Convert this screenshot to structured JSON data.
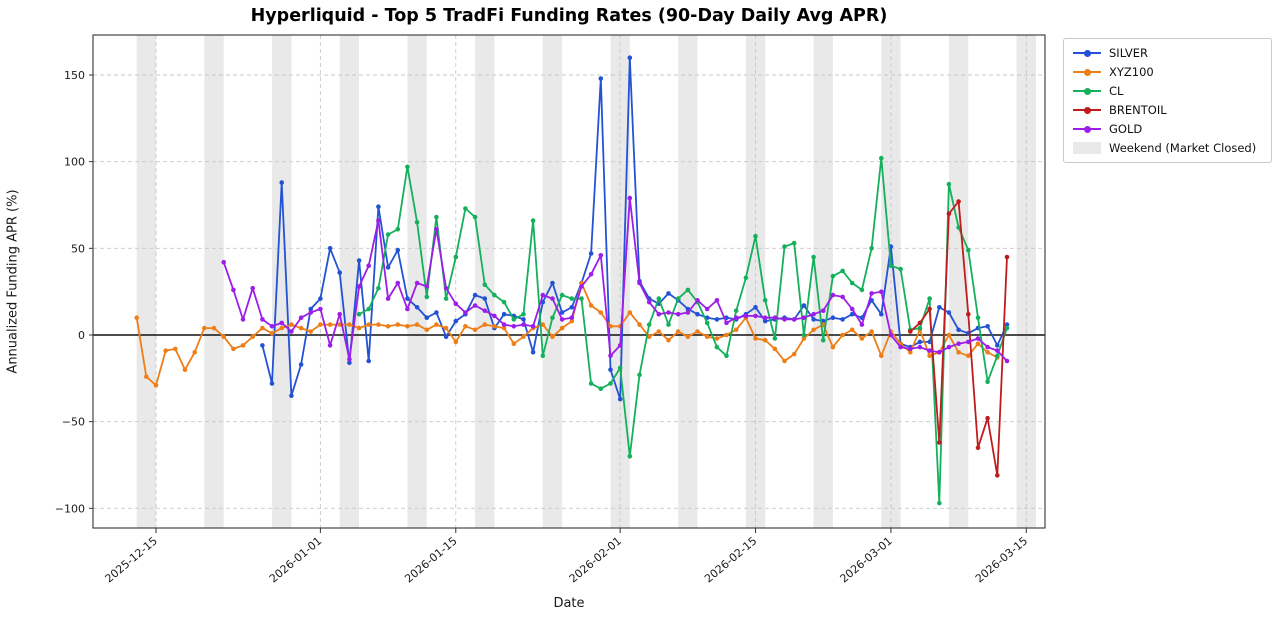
{
  "figure": {
    "title": "Hyperliquid - Top 5 TradFi Funding Rates (90-Day Daily Avg APR)",
    "xlabel": "Date",
    "ylabel": "Annualized Funding APR (%)"
  },
  "legend": {
    "weekend_label": "Weekend (Market Closed)"
  },
  "chart_data": {
    "type": "line",
    "title": "Hyperliquid - Top 5 TradFi Funding Rates (90-Day Daily Avg APR)",
    "xlabel": "Date",
    "ylabel": "Annualized Funding APR (%)",
    "grid": "dashed",
    "zero_line": true,
    "legend_position": "upper-right-outside",
    "ylim": [
      -111,
      173
    ],
    "yticks": [
      {
        "label": "−100",
        "value": -100
      },
      {
        "label": "−50",
        "value": -50
      },
      {
        "label": "0",
        "value": 0
      },
      {
        "label": "50",
        "value": 50
      },
      {
        "label": "100",
        "value": 100
      },
      {
        "label": "150",
        "value": 150
      }
    ],
    "xticks": [
      {
        "label": "2025-12-15",
        "index": 2
      },
      {
        "label": "2026-01-01",
        "index": 19
      },
      {
        "label": "2026-01-15",
        "index": 33
      },
      {
        "label": "2026-02-01",
        "index": 50
      },
      {
        "label": "2026-02-15",
        "index": 64
      },
      {
        "label": "2026-03-01",
        "index": 78
      },
      {
        "label": "2026-03-15",
        "index": 92
      }
    ],
    "weekend_shading": {
      "label": "Weekend (Market Closed)",
      "color": "#e9e9e9",
      "start_date": "2025-12-13",
      "days_drawn": 93
    },
    "x_dates": [
      "2025-12-13",
      "2025-12-14",
      "2025-12-15",
      "2025-12-16",
      "2025-12-17",
      "2025-12-18",
      "2025-12-19",
      "2025-12-20",
      "2025-12-21",
      "2025-12-22",
      "2025-12-23",
      "2025-12-24",
      "2025-12-25",
      "2025-12-26",
      "2025-12-27",
      "2025-12-28",
      "2025-12-29",
      "2025-12-30",
      "2025-12-31",
      "2026-01-01",
      "2026-01-02",
      "2026-01-03",
      "2026-01-04",
      "2026-01-05",
      "2026-01-06",
      "2026-01-07",
      "2026-01-08",
      "2026-01-09",
      "2026-01-10",
      "2026-01-11",
      "2026-01-12",
      "2026-01-13",
      "2026-01-14",
      "2026-01-15",
      "2026-01-16",
      "2026-01-17",
      "2026-01-18",
      "2026-01-19",
      "2026-01-20",
      "2026-01-21",
      "2026-01-22",
      "2026-01-23",
      "2026-01-24",
      "2026-01-25",
      "2026-01-26",
      "2026-01-27",
      "2026-01-28",
      "2026-01-29",
      "2026-01-30",
      "2026-01-31",
      "2026-02-01",
      "2026-02-02",
      "2026-02-03",
      "2026-02-04",
      "2026-02-05",
      "2026-02-06",
      "2026-02-07",
      "2026-02-08",
      "2026-02-09",
      "2026-02-10",
      "2026-02-11",
      "2026-02-12",
      "2026-02-13",
      "2026-02-14",
      "2026-02-15",
      "2026-02-16",
      "2026-02-17",
      "2026-02-18",
      "2026-02-19",
      "2026-02-20",
      "2026-02-21",
      "2026-02-22",
      "2026-02-23",
      "2026-02-24",
      "2026-02-25",
      "2026-02-26",
      "2026-02-27",
      "2026-02-28",
      "2026-03-01",
      "2026-03-02",
      "2026-03-03",
      "2026-03-04",
      "2026-03-05",
      "2026-03-06",
      "2026-03-07",
      "2026-03-08",
      "2026-03-09",
      "2026-03-10",
      "2026-03-11",
      "2026-03-12",
      "2026-03-13"
    ],
    "series": [
      {
        "name": "SILVER",
        "color": "#2353d4",
        "values": [
          null,
          null,
          null,
          null,
          null,
          null,
          null,
          null,
          null,
          null,
          null,
          null,
          null,
          -6,
          -28,
          88,
          -35,
          -17,
          15,
          21,
          50,
          36,
          -16,
          43,
          -15,
          74,
          39,
          49,
          21,
          16,
          10,
          13,
          -1,
          8,
          12,
          23,
          21,
          4,
          12,
          11,
          9,
          -10,
          19,
          30,
          13,
          16,
          30,
          47,
          148,
          -20,
          -37,
          160,
          31,
          21,
          18,
          24,
          20,
          15,
          12,
          10,
          9,
          10,
          9,
          12,
          16,
          8,
          9,
          10,
          9,
          17,
          9,
          8,
          10,
          9,
          12,
          10,
          20,
          12,
          51,
          -5,
          -7,
          -4,
          -4,
          16,
          13,
          3,
          1,
          4,
          5,
          -6,
          6
        ]
      },
      {
        "name": "XYZ100",
        "color": "#ee7e18",
        "values": [
          10,
          -24,
          -29,
          -9,
          -8,
          -20,
          -10,
          4,
          4,
          -1,
          -8,
          -6,
          -1,
          4,
          1,
          4,
          6,
          4,
          2,
          6,
          6,
          6,
          6,
          4,
          6,
          6,
          5,
          6,
          5,
          6,
          3,
          6,
          4,
          -4,
          5,
          3,
          6,
          5,
          4,
          -5,
          -1,
          4,
          6,
          -1,
          4,
          8,
          30,
          17,
          13,
          5,
          5,
          13,
          6,
          -1,
          2,
          -3,
          2,
          -1,
          2,
          -1,
          -2,
          0,
          3,
          10,
          -2,
          -3,
          -8,
          -15,
          -11,
          -2,
          3,
          6,
          -7,
          0,
          3,
          -2,
          2,
          -12,
          2,
          -5,
          -10,
          3,
          -12,
          -10,
          0,
          -10,
          -12,
          -5,
          -10,
          -13,
          null
        ]
      },
      {
        "name": "CL",
        "color": "#15b05b",
        "values": [
          null,
          null,
          null,
          null,
          null,
          null,
          null,
          null,
          null,
          null,
          null,
          null,
          null,
          null,
          null,
          null,
          null,
          null,
          null,
          null,
          null,
          null,
          null,
          12,
          15,
          27,
          58,
          61,
          97,
          65,
          22,
          68,
          21,
          45,
          73,
          68,
          29,
          23,
          19,
          9,
          12,
          66,
          -12,
          10,
          23,
          21,
          21,
          -28,
          -31,
          -28,
          -19,
          -70,
          -23,
          6,
          21,
          6,
          21,
          26,
          19,
          7,
          -7,
          -12,
          14,
          33,
          57,
          20,
          -2,
          51,
          53,
          0,
          45,
          -3,
          34,
          37,
          30,
          26,
          50,
          102,
          40,
          38,
          3,
          4,
          21,
          -97,
          87,
          62,
          49,
          10,
          -27,
          -12,
          4
        ]
      },
      {
        "name": "BRENTOIL",
        "color": "#bf1d1d",
        "values": [
          null,
          null,
          null,
          null,
          null,
          null,
          null,
          null,
          null,
          null,
          null,
          null,
          null,
          null,
          null,
          null,
          null,
          null,
          null,
          null,
          null,
          null,
          null,
          null,
          null,
          null,
          null,
          null,
          null,
          null,
          null,
          null,
          null,
          null,
          null,
          null,
          null,
          null,
          null,
          null,
          null,
          null,
          null,
          null,
          null,
          null,
          null,
          null,
          null,
          null,
          null,
          null,
          null,
          null,
          null,
          null,
          null,
          null,
          null,
          null,
          null,
          null,
          null,
          null,
          null,
          null,
          null,
          null,
          null,
          null,
          null,
          null,
          null,
          null,
          null,
          null,
          null,
          null,
          null,
          null,
          2,
          7,
          15,
          -62,
          70,
          77,
          12,
          -65,
          -48,
          -81,
          45
        ]
      },
      {
        "name": "GOLD",
        "color": "#9c1ee8",
        "values": [
          null,
          null,
          null,
          null,
          null,
          null,
          null,
          null,
          null,
          42,
          26,
          9,
          27,
          9,
          5,
          7,
          2,
          10,
          13,
          15,
          -6,
          12,
          -14,
          28,
          40,
          66,
          21,
          30,
          15,
          30,
          28,
          61,
          27,
          18,
          13,
          17,
          14,
          11,
          6,
          5,
          6,
          5,
          23,
          21,
          9,
          10,
          28,
          35,
          46,
          -12,
          -6,
          79,
          30,
          19,
          12,
          13,
          12,
          13,
          20,
          15,
          20,
          7,
          10,
          11,
          11,
          10,
          10,
          9,
          9,
          10,
          12,
          14,
          23,
          22,
          15,
          6,
          24,
          25,
          0,
          -7,
          -8,
          -7,
          -9,
          -10,
          -7,
          -5,
          -4,
          -2,
          -7,
          -9,
          -15
        ]
      }
    ]
  }
}
